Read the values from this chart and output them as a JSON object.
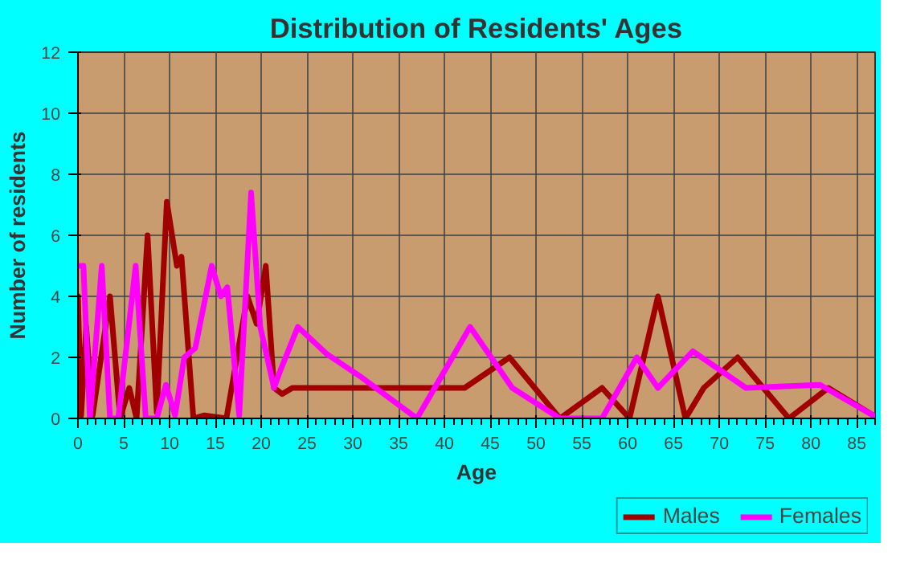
{
  "chart_data": {
    "type": "line",
    "title": "Distribution of Residents' Ages",
    "xlabel": "Age",
    "ylabel": "Number of residents",
    "xlim": [
      0,
      87
    ],
    "xticks": [
      0,
      5,
      10,
      15,
      20,
      25,
      30,
      35,
      40,
      45,
      50,
      55,
      60,
      65,
      70,
      75,
      80,
      85
    ],
    "ylim": [
      0,
      12
    ],
    "yticks": [
      0,
      2,
      4,
      6,
      8,
      10,
      12
    ],
    "grid": true,
    "legend": "bottom",
    "line_style": "solid",
    "series": [
      {
        "name": "Males",
        "color": "#a00000",
        "x": [
          0,
          0.35,
          0.9,
          1.6,
          3.5,
          4.6,
          5.6,
          6.4,
          7.6,
          8.6,
          9.7,
          10.8,
          11.3,
          12.6,
          13.8,
          16.2,
          18.5,
          19.5,
          20.5,
          21.4,
          22.3,
          23.4,
          30,
          36,
          42.2,
          47.1,
          52.6,
          57.2,
          60.2,
          63.3,
          66.3,
          68.3,
          72,
          77.6,
          81.9,
          86.8
        ],
        "values": [
          4,
          0.1,
          3,
          0.1,
          4,
          0,
          1,
          0,
          6,
          0.2,
          7.1,
          5,
          5.3,
          0,
          0.1,
          0,
          4,
          3.1,
          5,
          1,
          0.8,
          1,
          1,
          1,
          1,
          2,
          0,
          1,
          0,
          4,
          0,
          1,
          2,
          0,
          1,
          0.1
        ]
      },
      {
        "name": "Females",
        "color": "#ff00ff",
        "x": [
          0,
          0.6,
          1.3,
          2.6,
          3.5,
          4.4,
          6.3,
          7.4,
          8.6,
          9.6,
          10.6,
          11.6,
          12.8,
          14.6,
          15.6,
          16.3,
          17.6,
          18.9,
          19.9,
          21.4,
          22,
          24,
          27.2,
          30.7,
          37,
          42.8,
          47.4,
          52.6,
          57.2,
          61,
          63.3,
          67.1,
          72.9,
          81,
          86.8
        ],
        "values": [
          5,
          5,
          0,
          5,
          0,
          0,
          5,
          0,
          0,
          1.1,
          0.1,
          2,
          2.3,
          5,
          4,
          4.3,
          0.1,
          7.4,
          3,
          1,
          1.5,
          3,
          2.1,
          1.4,
          0,
          3,
          1,
          0,
          0,
          2,
          1,
          2.2,
          1,
          1.1,
          0.1
        ]
      }
    ]
  }
}
